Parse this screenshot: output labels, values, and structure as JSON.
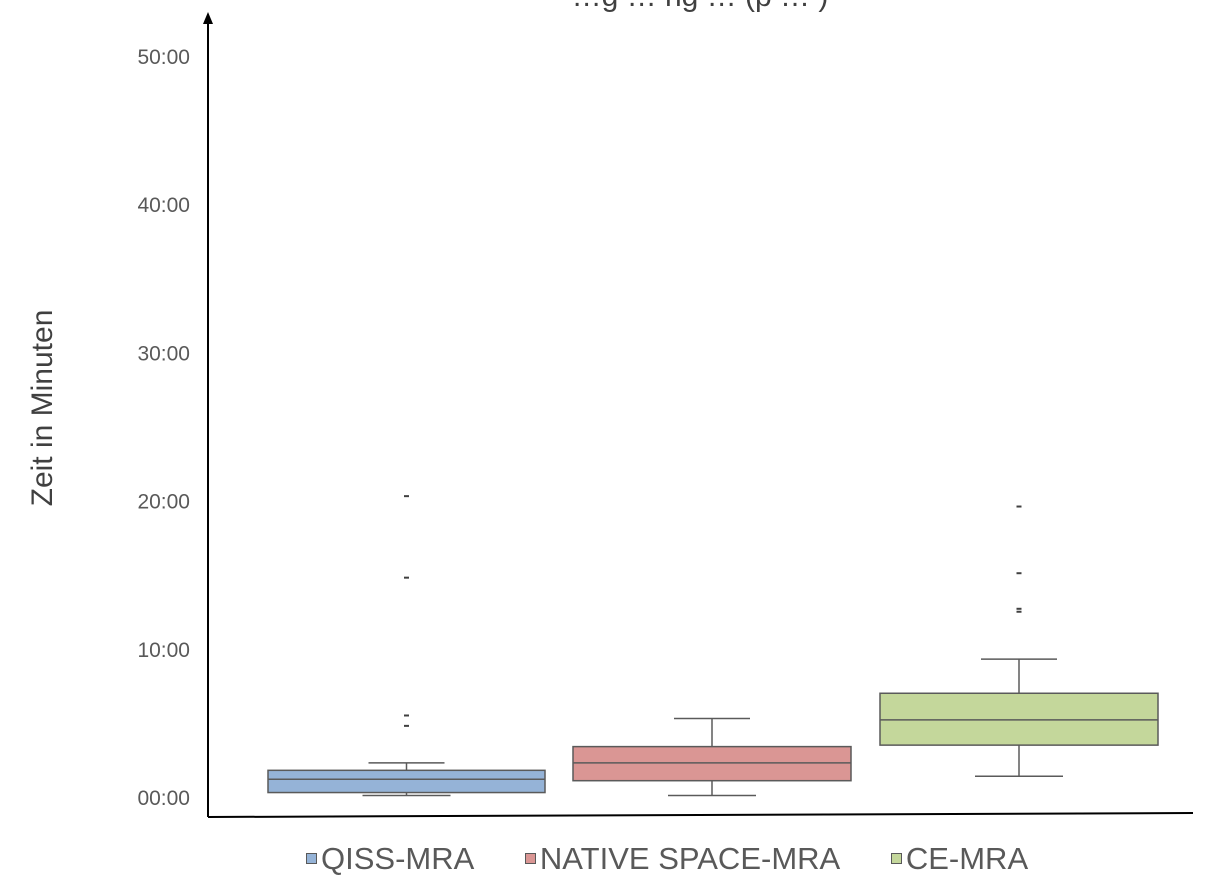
{
  "chart_data": {
    "type": "boxplot",
    "title": "…g … ng … (p … )",
    "ylabel": "Zeit in Minuten",
    "yticks": [
      "00:00",
      "10:00",
      "20:00",
      "30:00",
      "40:00",
      "50:00"
    ],
    "ylim": [
      0,
      50
    ],
    "grid": false,
    "legend_position": "bottom",
    "series": [
      {
        "name": "QISS-MRA",
        "color": "#95b3d7",
        "min": 0.1,
        "q1": 0.3,
        "median": 1.2,
        "q3": 1.8,
        "max": 2.3,
        "outliers": [
          4.8,
          5.5,
          14.8,
          20.3
        ]
      },
      {
        "name": "NATIVE SPACE-MRA",
        "color": "#da9694",
        "min": 0.1,
        "q1": 1.1,
        "median": 2.3,
        "q3": 3.4,
        "max": 5.3,
        "outliers": []
      },
      {
        "name": "CE-MRA",
        "color": "#c4d79b",
        "min": 1.4,
        "q1": 3.5,
        "median": 5.2,
        "q3": 7.0,
        "max": 9.3,
        "outliers": [
          12.5,
          12.7,
          15.1,
          19.6
        ]
      }
    ]
  }
}
